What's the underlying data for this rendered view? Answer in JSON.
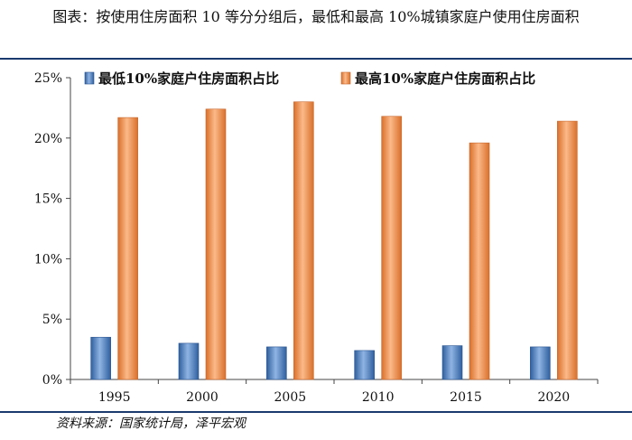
{
  "figure": {
    "title": "图表：按使用住房面积 10 等分分组后，最低和最高 10%城镇家庭户使用住房面积",
    "source": "资料来源：国家统计局，泽平宏观"
  },
  "colors": {
    "low": "#4f81bd",
    "high": "#f79646",
    "rule": "#1a3a6e"
  },
  "chart_data": {
    "type": "bar",
    "categories": [
      "1995",
      "2000",
      "2005",
      "2010",
      "2015",
      "2020"
    ],
    "series": [
      {
        "name": "最低10%家庭户住房面积占比",
        "values": [
          3.5,
          3.0,
          2.7,
          2.4,
          2.8,
          2.7
        ]
      },
      {
        "name": "最高10%家庭户住房面积占比",
        "values": [
          21.7,
          22.4,
          23.0,
          21.8,
          19.6,
          21.4
        ]
      }
    ],
    "ylim": [
      0,
      25
    ],
    "yticks": [
      "0%",
      "5%",
      "10%",
      "15%",
      "20%",
      "25%"
    ],
    "legend": "top",
    "grid": false
  }
}
